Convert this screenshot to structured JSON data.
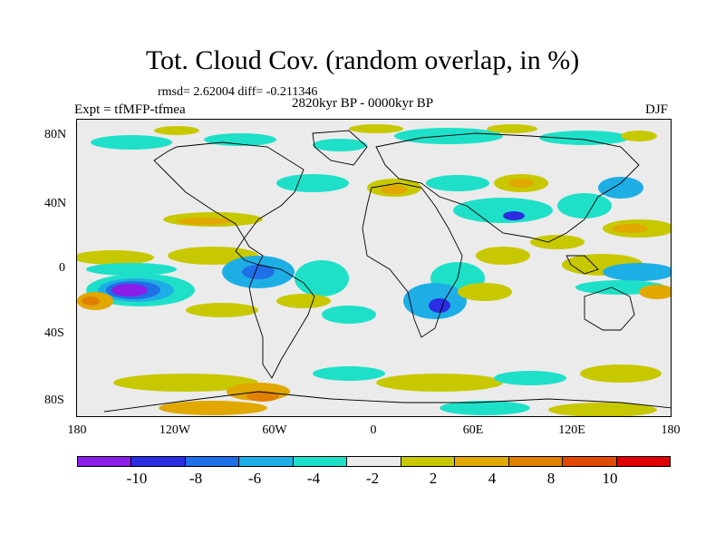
{
  "title": "Tot. Cloud Cov. (random overlap, in %)",
  "stats": "rmsd= 2.62004 diff= -0.211346",
  "period": "2820kyr BP - 0000kyr BP",
  "experiment": "Expt = tfMFP-tfmea",
  "season": "DJF",
  "y_axis_labels": [
    "80N",
    "40N",
    "0",
    "40S",
    "80S"
  ],
  "x_axis_labels": [
    "180",
    "120W",
    "60W",
    "0",
    "60E",
    "120E",
    "180"
  ],
  "colorbar": {
    "colors": [
      "#8a1ee8",
      "#2a2ee0",
      "#1f6fe6",
      "#1eaee6",
      "#1ee0c8",
      "#ebebeb",
      "#c8c800",
      "#e0a800",
      "#e08000",
      "#e04a00",
      "#e00000"
    ],
    "labels": [
      "-10",
      "-8",
      "-6",
      "-4",
      "-2",
      "2",
      "4",
      "8",
      "10"
    ]
  }
}
